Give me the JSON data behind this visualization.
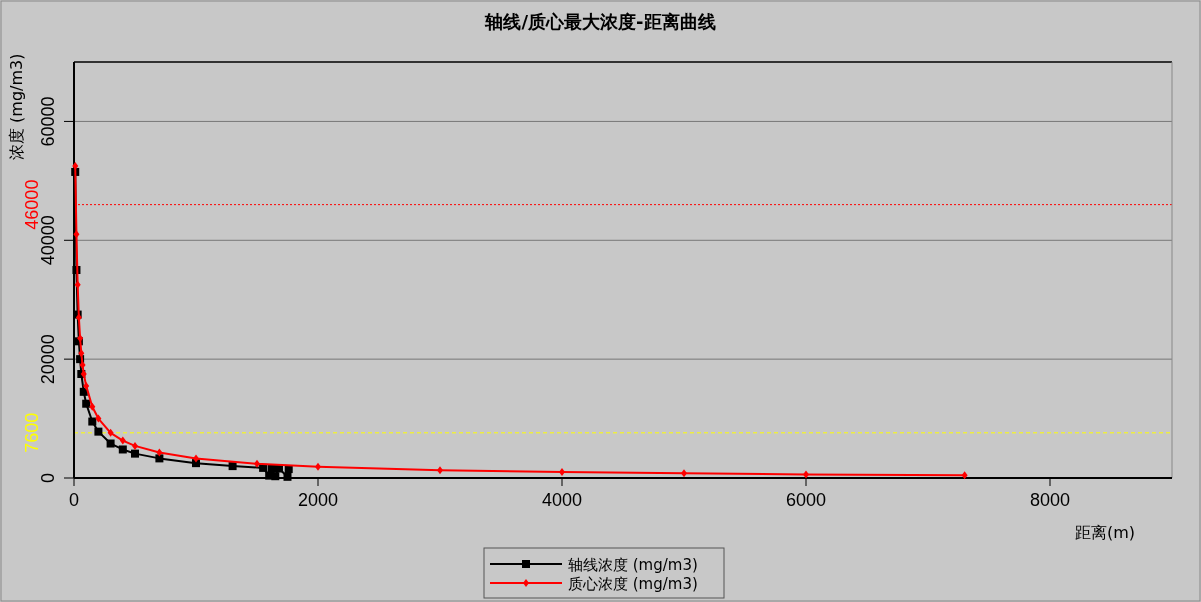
{
  "chart_data": {
    "type": "line",
    "title": "轴线/质心最大浓度-距离曲线",
    "xlabel": "距离(m)",
    "ylabel": "浓度 (mg/m3)",
    "xlim": [
      0,
      9000
    ],
    "xticks": [
      0,
      2000,
      4000,
      6000,
      8000
    ],
    "ylim": [
      0,
      70000
    ],
    "yticks": [
      0,
      20000,
      40000,
      60000
    ],
    "grid": "y",
    "legend": "bottom",
    "series": [
      {
        "name": "轴线浓度 (mg/m3)",
        "color": "#000000",
        "marker": "square",
        "x": [
          10,
          20,
          30,
          40,
          50,
          60,
          80,
          100,
          150,
          200,
          300,
          400,
          500,
          700,
          1000,
          1300,
          1550,
          1600,
          1620,
          1650,
          1680,
          1750,
          1760
        ],
        "values": [
          51500,
          35000,
          27500,
          23000,
          20000,
          17500,
          14500,
          12500,
          9500,
          7800,
          5800,
          4800,
          4100,
          3300,
          2500,
          2000,
          1700,
          400,
          1600,
          300,
          1600,
          200,
          1500
        ]
      },
      {
        "name": "质心浓度 (mg/m3)",
        "color": "#ff0000",
        "marker": "diamond",
        "x": [
          10,
          20,
          30,
          40,
          50,
          60,
          70,
          80,
          100,
          150,
          200,
          300,
          400,
          500,
          700,
          1000,
          1500,
          2000,
          3000,
          4000,
          5000,
          6000,
          7300
        ],
        "values": [
          52500,
          41000,
          32500,
          27000,
          23500,
          21000,
          19000,
          17500,
          15500,
          12000,
          10000,
          7600,
          6300,
          5400,
          4300,
          3300,
          2400,
          1900,
          1300,
          1000,
          800,
          600,
          450
        ]
      }
    ],
    "ref_lines": [
      {
        "axis": "y",
        "value": 46000,
        "label": "46000",
        "color": "#ff0000",
        "line_style": "dotted"
      },
      {
        "axis": "y",
        "value": 7600,
        "label": "7600",
        "color": "#ffff00",
        "line_style": "dashed"
      }
    ]
  }
}
